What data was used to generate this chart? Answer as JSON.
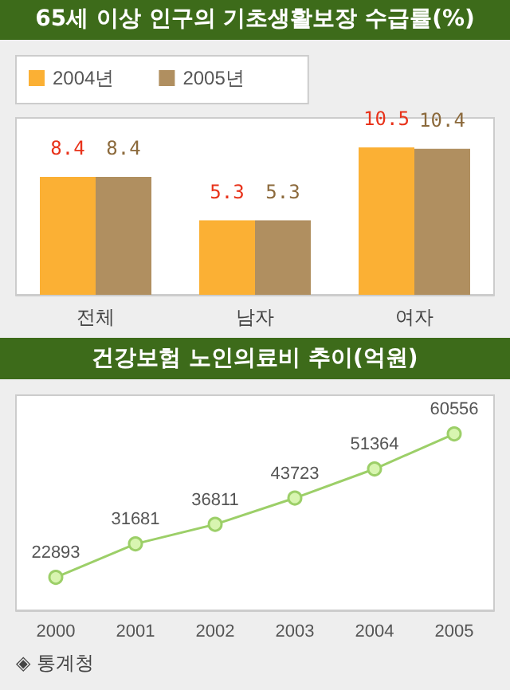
{
  "chart_data": [
    {
      "type": "bar",
      "title": "65세 이상 인구의 기초생활보장 수급률(%)",
      "categories": [
        "전체",
        "남자",
        "여자"
      ],
      "series": [
        {
          "name": "2004년",
          "color": "#fbb034",
          "values": [
            8.4,
            5.3,
            10.5
          ]
        },
        {
          "name": "2005년",
          "color": "#b08f60",
          "values": [
            8.4,
            5.3,
            10.4
          ]
        }
      ],
      "data_labels": true,
      "legend": "top left"
    },
    {
      "type": "line",
      "title": "건강보험 노인의료비 추이(억원)",
      "categories": [
        "2000",
        "2001",
        "2002",
        "2003",
        "2004",
        "2005"
      ],
      "series": [
        {
          "color": "#9ccf68",
          "values": [
            22893,
            31681,
            36811,
            43723,
            51364,
            60556
          ]
        }
      ],
      "data_labels": true,
      "marker": "circle",
      "annotations": [
        "◈ 통계청"
      ]
    }
  ]
}
